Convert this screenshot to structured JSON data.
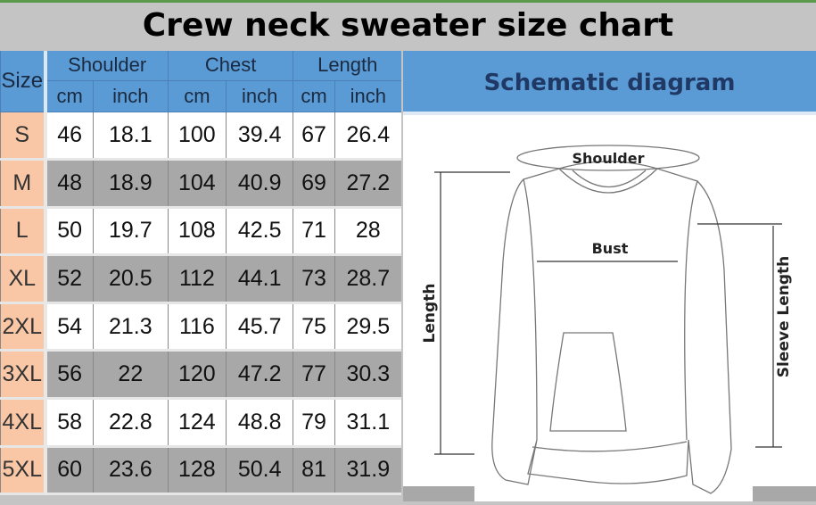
{
  "title": "Crew neck sweater size chart",
  "table": {
    "size_header": "Size",
    "groups": [
      "Shoulder",
      "Chest",
      "Length"
    ],
    "units": [
      "cm",
      "inch",
      "cm",
      "inch",
      "cm",
      "inch"
    ],
    "rows": [
      {
        "size": "S",
        "values": [
          "46",
          "18.1",
          "100",
          "39.4",
          "67",
          "26.4"
        ]
      },
      {
        "size": "M",
        "values": [
          "48",
          "18.9",
          "104",
          "40.9",
          "69",
          "27.2"
        ]
      },
      {
        "size": "L",
        "values": [
          "50",
          "19.7",
          "108",
          "42.5",
          "71",
          "28"
        ]
      },
      {
        "size": "XL",
        "values": [
          "52",
          "20.5",
          "112",
          "44.1",
          "73",
          "28.7"
        ]
      },
      {
        "size": "2XL",
        "values": [
          "54",
          "21.3",
          "116",
          "45.7",
          "75",
          "29.5"
        ]
      },
      {
        "size": "3XL",
        "values": [
          "56",
          "22",
          "120",
          "47.2",
          "77",
          "30.3"
        ]
      },
      {
        "size": "4XL",
        "values": [
          "58",
          "22.8",
          "124",
          "48.8",
          "79",
          "31.1"
        ]
      },
      {
        "size": "5XL",
        "values": [
          "60",
          "23.6",
          "128",
          "50.4",
          "81",
          "31.9"
        ]
      }
    ]
  },
  "diagram": {
    "heading": "Schematic diagram",
    "labels": {
      "shoulder": "Shoulder",
      "bust": "Bust",
      "length": "Length",
      "sleeve": "Sleeve Length"
    }
  },
  "colors": {
    "header_blue": "#5b9bd5",
    "size_col": "#f9c7a6",
    "stripe_gray": "#a8a8a8",
    "heading_text": "#1f3864"
  }
}
